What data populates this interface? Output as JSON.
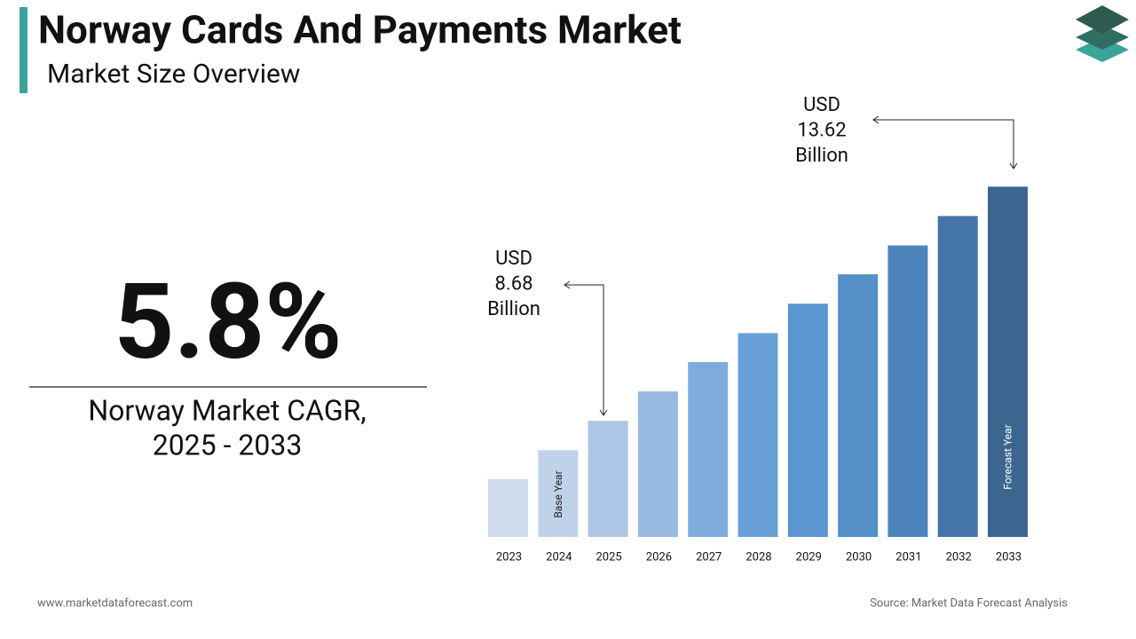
{
  "chart_data": {
    "type": "bar",
    "title": "Norway Cards And Payments Market",
    "subtitle": "Market Size Overview",
    "cagr": "5.8%",
    "cagr_label": [
      "Norway Market CAGR,",
      "2025 - 2033"
    ],
    "categories": [
      "2023",
      "2024",
      "2025",
      "2026",
      "2027",
      "2028",
      "2029",
      "2030",
      "2031",
      "2032",
      "2033"
    ],
    "values": [
      7.45,
      8.06,
      8.68,
      9.3,
      9.92,
      10.53,
      11.15,
      11.77,
      12.38,
      13.0,
      13.62
    ],
    "value_labels": [
      null,
      null,
      "USD 8.68 Billion",
      null,
      null,
      null,
      null,
      null,
      null,
      null,
      "USD 13.62 Billion"
    ],
    "bar_notes": [
      null,
      "Base Year",
      null,
      null,
      null,
      null,
      null,
      null,
      null,
      null,
      "Forecast Year"
    ],
    "colors": [
      "#d0dcec",
      "#c0d2ea",
      "#adc6e6",
      "#98b9e0",
      "#80acdc",
      "#6aa0d8",
      "#5b96d0",
      "#5590c8",
      "#4d84bc",
      "#4575a8",
      "#3c6690"
    ],
    "ylim": [
      6.23,
      14
    ],
    "footer_left": "www.marketdataforecast.com",
    "footer_right": "Source: Market Data Forecast Analysis"
  }
}
